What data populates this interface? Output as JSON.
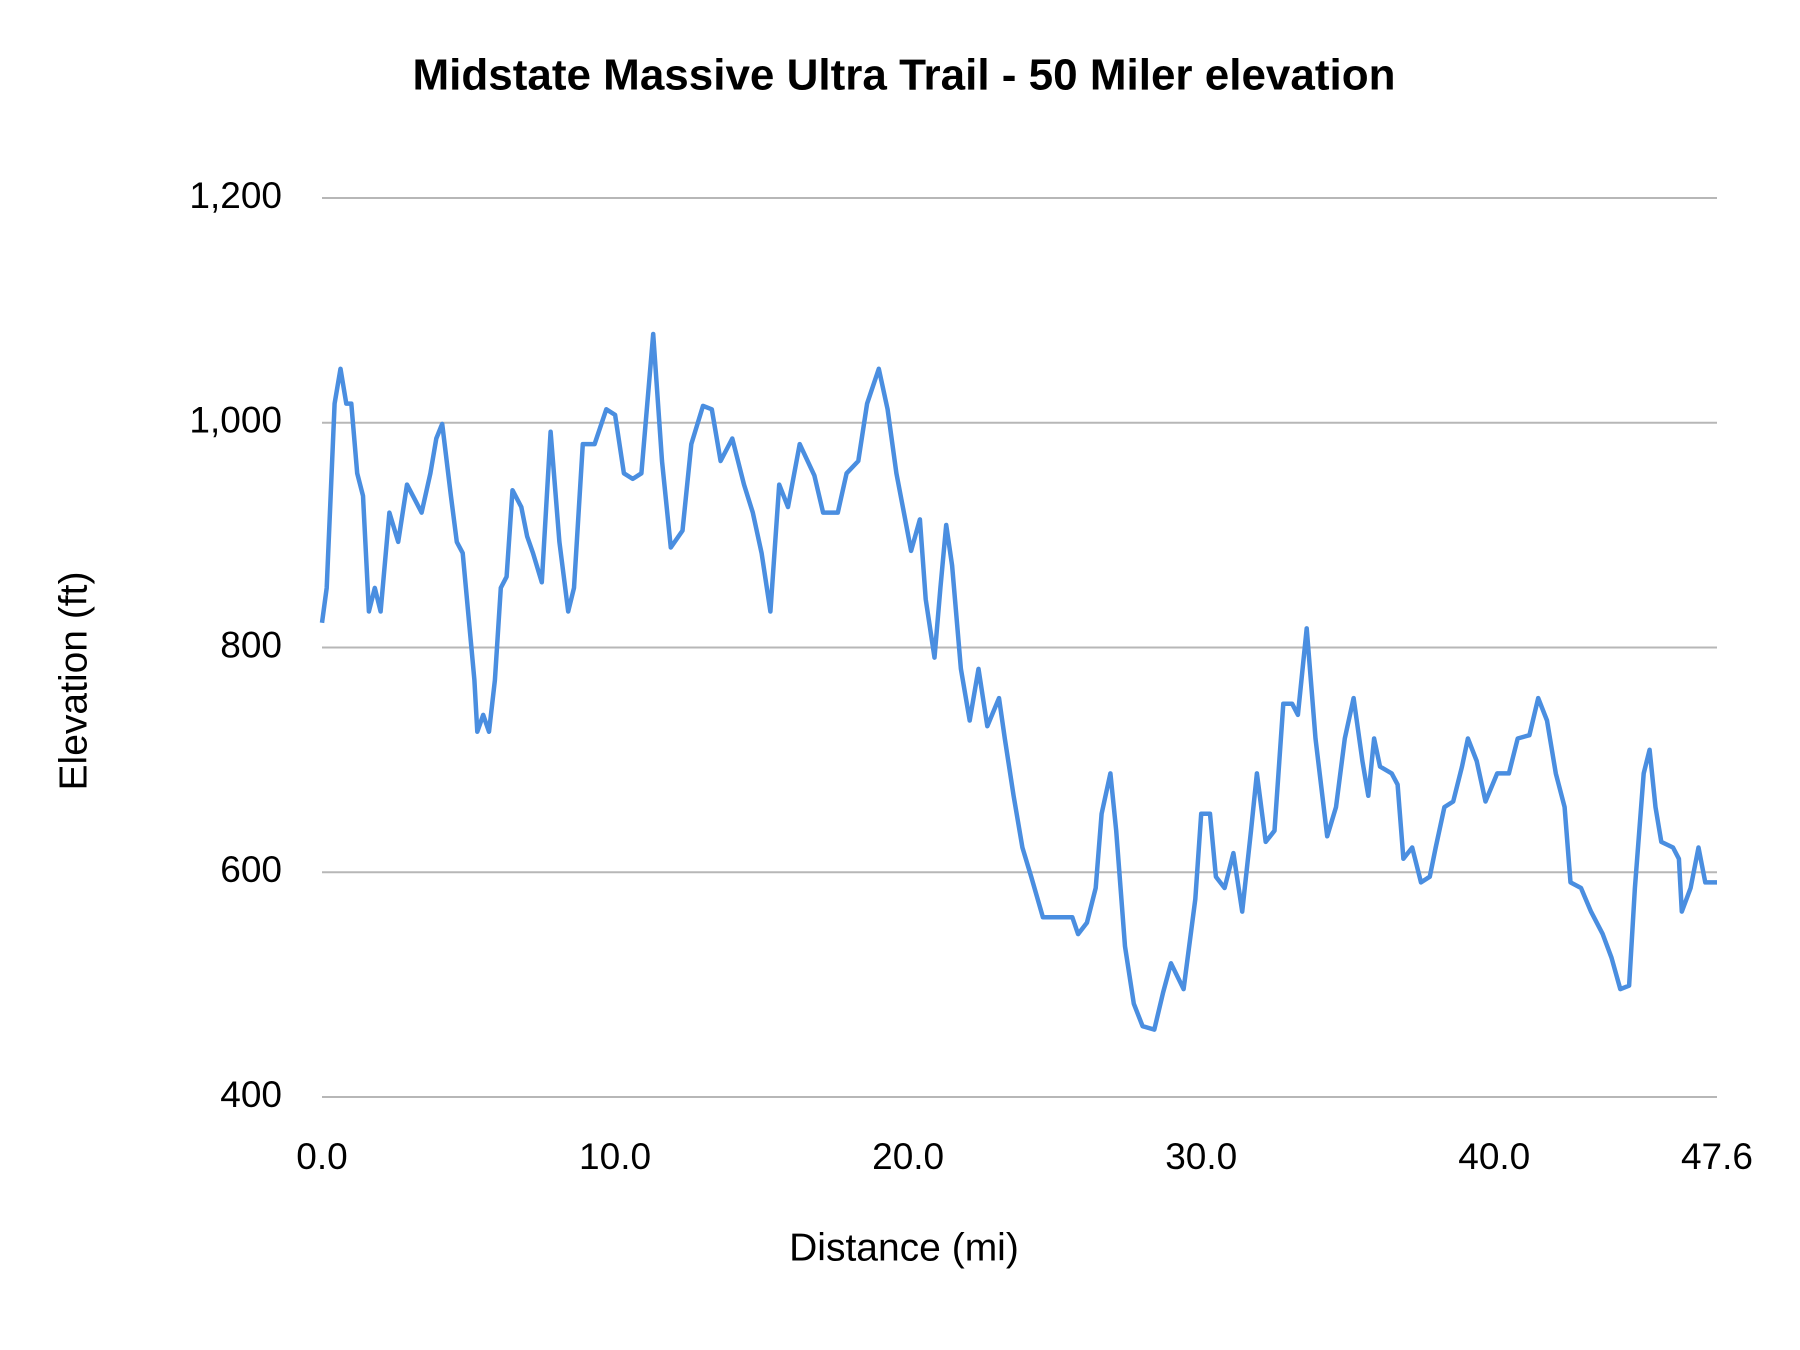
{
  "chart_data": {
    "type": "line",
    "title": "Midstate Massive Ultra Trail - 50 Miler elevation",
    "xlabel": "Distance (mi)",
    "ylabel": "Elevation (ft)",
    "xlim": [
      0,
      47.6
    ],
    "xticks": [
      {
        "value": 0,
        "label": "0.0"
      },
      {
        "value": 10,
        "label": "10.0"
      },
      {
        "value": 20,
        "label": "20.0"
      },
      {
        "value": 30,
        "label": "30.0"
      },
      {
        "value": 40,
        "label": "40.0"
      },
      47.6
    ],
    "ylim": [
      400,
      1200
    ],
    "yticks": [
      400,
      600,
      800,
      {
        "value": 1000,
        "label": "1,000"
      },
      {
        "value": 1200,
        "label": "1,200"
      }
    ],
    "grid": true,
    "x": [
      0,
      0.16,
      0.43,
      0.63,
      0.83,
      1.0,
      1.2,
      1.4,
      1.6,
      1.8,
      2.0,
      2.3,
      2.6,
      2.9,
      3.1,
      3.4,
      3.7,
      3.9,
      4.1,
      4.4,
      4.6,
      4.8,
      5.2,
      5.3,
      5.5,
      5.7,
      5.9,
      6.1,
      6.3,
      6.5,
      6.8,
      7.0,
      7.2,
      7.5,
      7.8,
      8.1,
      8.4,
      8.6,
      8.9,
      9.3,
      9.7,
      10.0,
      10.3,
      10.6,
      10.9,
      11.1,
      11.3,
      11.6,
      11.9,
      12.3,
      12.6,
      13.0,
      13.3,
      13.6,
      14.0,
      14.4,
      14.7,
      15.0,
      15.3,
      15.6,
      15.9,
      16.3,
      16.8,
      17.1,
      17.6,
      17.9,
      18.3,
      18.6,
      19.0,
      19.3,
      19.6,
      19.9,
      20.1,
      20.4,
      20.6,
      20.9,
      21.1,
      21.3,
      21.5,
      21.8,
      22.1,
      22.4,
      22.7,
      23.1,
      23.3,
      23.6,
      23.9,
      24.2,
      24.6,
      25.6,
      25.8,
      26.1,
      26.4,
      26.6,
      26.9,
      27.1,
      27.4,
      27.7,
      28.0,
      28.4,
      28.7,
      28.97,
      29.4,
      29.8,
      30.0,
      30.3,
      30.5,
      30.8,
      31.1,
      31.4,
      31.7,
      31.9,
      32.2,
      32.5,
      32.8,
      33.1,
      33.3,
      33.6,
      33.9,
      34.3,
      34.6,
      34.9,
      35.2,
      35.5,
      35.7,
      35.9,
      36.1,
      36.5,
      36.7,
      36.9,
      37.2,
      37.5,
      37.8,
      38.0,
      38.3,
      38.6,
      38.9,
      39.1,
      39.4,
      39.7,
      40.1,
      40.5,
      40.8,
      41.2,
      41.5,
      41.8,
      42.1,
      42.4,
      42.6,
      42.96,
      43.3,
      43.7,
      44.0,
      44.3,
      44.6,
      44.8,
      45.1,
      45.3,
      45.5,
      45.7,
      46.1,
      46.3,
      46.4,
      46.7,
      46.97,
      47.2,
      47.6
    ],
    "series": [
      {
        "name": "Elevation",
        "color": "#4a8ee0",
        "values": [
          822,
          853,
          1017,
          1048,
          1017,
          1017,
          955,
          935,
          832,
          853,
          832,
          920,
          894,
          945,
          935,
          920,
          955,
          986,
          999,
          935,
          894,
          884,
          771,
          725,
          740,
          725,
          771,
          853,
          863,
          940,
          925,
          899,
          884,
          858,
          992,
          894,
          832,
          853,
          981,
          981,
          1012,
          1007,
          955,
          950,
          955,
          1017,
          1079,
          966,
          889,
          904,
          981,
          1015,
          1012,
          966,
          986,
          945,
          920,
          884,
          832,
          945,
          925,
          981,
          953,
          920,
          920,
          955,
          966,
          1017,
          1048,
          1012,
          955,
          914,
          886,
          914,
          843,
          791,
          853,
          909,
          873,
          781,
          735,
          781,
          730,
          755,
          719,
          668,
          622,
          596,
          560,
          560,
          545,
          555,
          586,
          652,
          688,
          637,
          534,
          483,
          463,
          460,
          493,
          519,
          496,
          576,
          652,
          652,
          596,
          586,
          617,
          565,
          637,
          688,
          627,
          637,
          750,
          750,
          740,
          817,
          719,
          632,
          658,
          719,
          755,
          699,
          668,
          719,
          694,
          688,
          678,
          612,
          622,
          591,
          596,
          622,
          658,
          663,
          694,
          719,
          699,
          663,
          688,
          688,
          719,
          722,
          755,
          735,
          688,
          658,
          591,
          586,
          565,
          545,
          524,
          496,
          499,
          586,
          688,
          709,
          658,
          627,
          622,
          612,
          565,
          586,
          622,
          591,
          591
        ]
      }
    ]
  }
}
